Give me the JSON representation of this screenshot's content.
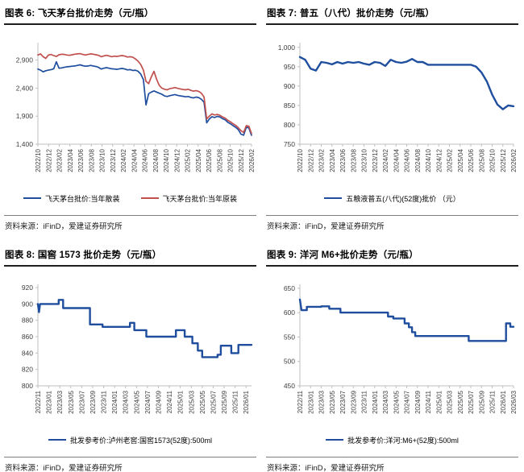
{
  "chart_data": [
    {
      "type": "line",
      "title": "图表 6: 飞天茅台批价走势（元/瓶）",
      "source": "资料来源：iFinD，爱建证券研究所",
      "legend_position": "bottom",
      "grid": false,
      "ylim": [
        1400,
        3210
      ],
      "yticks": [
        1400,
        1900,
        2400,
        2900
      ],
      "ytick_labels": [
        "1,400",
        "1,900",
        "2,400",
        "2,900"
      ],
      "xmax": 40,
      "xtick_step": 2,
      "xtick_labels": [
        "2022/10",
        "2022/12",
        "2023/02",
        "2023/04",
        "2023/06",
        "2023/08",
        "2023/10",
        "2023/12",
        "2024/02",
        "2024/04",
        "2024/06",
        "2024/08",
        "2024/10",
        "2024/12",
        "2025/02",
        "2025/04",
        "2025/06",
        "2025/08",
        "2025/10",
        "2025/12",
        "2026/02"
      ],
      "series": [
        {
          "name": "飞天茅台批价:当年散装",
          "color": "#1F4E9E",
          "width": 1.7,
          "values": [
            2740,
            2720,
            2690,
            2710,
            2720,
            2730,
            2745,
            2870,
            2755,
            2760,
            2770,
            2780,
            2785,
            2790,
            2795,
            2805,
            2815,
            2800,
            2790,
            2795,
            2805,
            2795,
            2785,
            2770,
            2740,
            2755,
            2765,
            2755,
            2745,
            2740,
            2735,
            2745,
            2750,
            2740,
            2725,
            2730,
            2715,
            2720,
            2700,
            2650,
            2550,
            2100,
            2300,
            2330,
            2350,
            2330,
            2310,
            2290,
            2260,
            2250,
            2265,
            2275,
            2285,
            2270,
            2260,
            2255,
            2245,
            2250,
            2235,
            2225,
            2240,
            2230,
            2200,
            2150,
            1780,
            1850,
            1890,
            1875,
            1895,
            1885,
            1855,
            1835,
            1790,
            1765,
            1730,
            1700,
            1660,
            1580,
            1560,
            1700,
            1690,
            1560
          ]
        },
        {
          "name": "飞天茅台批价:当年原装",
          "color": "#C0504D",
          "width": 1.7,
          "values": [
            2990,
            3010,
            2960,
            2930,
            2990,
            3000,
            2980,
            2965,
            2995,
            3005,
            3000,
            2990,
            2985,
            2995,
            3005,
            3010,
            3015,
            3000,
            2990,
            3000,
            3010,
            3005,
            2995,
            2985,
            2960,
            2975,
            2985,
            2975,
            2960,
            2970,
            2965,
            2975,
            2980,
            2970,
            2955,
            2960,
            2950,
            2920,
            2880,
            2820,
            2720,
            2520,
            2480,
            2600,
            2700,
            2560,
            2450,
            2400,
            2380,
            2370,
            2390,
            2400,
            2410,
            2395,
            2385,
            2375,
            2370,
            2380,
            2360,
            2345,
            2355,
            2340,
            2310,
            2240,
            1850,
            1900,
            1940,
            1920,
            1930,
            1915,
            1885,
            1865,
            1825,
            1800,
            1765,
            1735,
            1695,
            1640,
            1610,
            1730,
            1720,
            1590
          ]
        }
      ]
    },
    {
      "type": "line",
      "title": "图表 7: 普五（八代）批价走势（元/瓶）",
      "source": "资料来源：iFinD，爱建证券研究所",
      "legend_position": "bottom",
      "grid": false,
      "ylim": [
        750,
        1012
      ],
      "yticks": [
        750,
        800,
        850,
        900,
        950,
        1000
      ],
      "ytick_labels": [
        "750",
        "800",
        "850",
        "900",
        "950",
        "1,000"
      ],
      "xmax": 40,
      "xtick_step": 2,
      "xtick_labels": [
        "2022/10",
        "2022/12",
        "2023/02",
        "2023/04",
        "2023/06",
        "2023/08",
        "2023/10",
        "2023/12",
        "2024/02",
        "2024/04",
        "2024/06",
        "2024/08",
        "2024/10",
        "2024/12",
        "2025/02",
        "2025/04",
        "2025/06",
        "2025/08",
        "2025/10",
        "2025/12",
        "2026/02"
      ],
      "series": [
        {
          "name": "五粮液普五(八代)(52度)批价 （元）",
          "color": "#1F4E9E",
          "width": 2.4,
          "values": [
            975,
            968,
            945,
            940,
            962,
            960,
            956,
            962,
            958,
            962,
            960,
            962,
            958,
            955,
            962,
            960,
            952,
            968,
            962,
            960,
            963,
            970,
            962,
            962,
            955,
            955,
            955,
            955,
            955,
            955,
            955,
            955,
            955,
            950,
            935,
            912,
            878,
            852,
            840,
            850,
            848
          ]
        }
      ]
    },
    {
      "type": "line",
      "title": "图表 8: 国窖 1573 批价走势（元/瓶）",
      "source": "资料来源：iFinD，爱建证券研究所",
      "legend_position": "bottom",
      "grid": false,
      "ylim": [
        800,
        924
      ],
      "yticks": [
        800,
        820,
        840,
        860,
        880,
        900,
        920
      ],
      "ytick_labels": [
        "800",
        "820",
        "840",
        "860",
        "880",
        "900",
        "920"
      ],
      "xmax": 39,
      "xtick_step": 2,
      "xtick_labels": [
        "2022/11",
        "2023/01",
        "2023/03",
        "2023/05",
        "2023/07",
        "2023/09",
        "2023/11",
        "2024/01",
        "2024/03",
        "2024/05",
        "2024/07",
        "2024/09",
        "2024/11",
        "2025/01",
        "2025/03",
        "2025/05",
        "2025/07",
        "2025/09",
        "2025/11",
        "2026/01"
      ],
      "series": [
        {
          "name": "批发参考价:泸州老窖:国窖1573(52度):500ml",
          "color": "#1F4E9E",
          "width": 2.4,
          "points": [
            [
              0,
              900
            ],
            [
              0.2,
              890
            ],
            [
              0.4,
              900
            ],
            [
              3.8,
              900
            ],
            [
              3.8,
              905
            ],
            [
              4.6,
              905
            ],
            [
              4.6,
              895
            ],
            [
              9.5,
              895
            ],
            [
              9.5,
              875
            ],
            [
              11.8,
              875
            ],
            [
              11.8,
              872
            ],
            [
              16.8,
              872
            ],
            [
              16.8,
              877
            ],
            [
              17.6,
              877
            ],
            [
              17.6,
              868
            ],
            [
              19.8,
              868
            ],
            [
              19.8,
              860
            ],
            [
              25.2,
              860
            ],
            [
              25.2,
              868
            ],
            [
              26.8,
              868
            ],
            [
              26.8,
              860
            ],
            [
              28.2,
              860
            ],
            [
              28.2,
              852
            ],
            [
              29.2,
              852
            ],
            [
              29.2,
              843
            ],
            [
              30,
              843
            ],
            [
              30,
              835
            ],
            [
              32.8,
              835
            ],
            [
              32.8,
              838
            ],
            [
              33.4,
              838
            ],
            [
              33.4,
              849
            ],
            [
              35.3,
              849
            ],
            [
              35.3,
              840
            ],
            [
              36.6,
              840
            ],
            [
              36.6,
              850
            ],
            [
              39,
              850
            ]
          ]
        }
      ]
    },
    {
      "type": "line",
      "title": "图表 9: 洋河 M6+批价走势（元/瓶）",
      "source": "资料来源：iFinD，爱建证券研究所",
      "legend_position": "bottom",
      "grid": false,
      "ylim": [
        450,
        658
      ],
      "yticks": [
        450,
        500,
        550,
        600,
        650
      ],
      "ytick_labels": [
        "450",
        "500",
        "550",
        "600",
        "650"
      ],
      "xmax": 40,
      "xtick_step": 2,
      "xtick_labels": [
        "2022/11",
        "2023/01",
        "2023/03",
        "2023/05",
        "2023/07",
        "2023/09",
        "2023/11",
        "2024/01",
        "2024/03",
        "2024/05",
        "2024/07",
        "2024/09",
        "2024/11",
        "2025/01",
        "2025/03",
        "2025/05",
        "2025/07",
        "2025/09",
        "2025/11",
        "2026/01",
        "2026/03"
      ],
      "series": [
        {
          "name": "批发参考价:洋河:M6+(52度):500ml",
          "color": "#1F4E9E",
          "width": 2.4,
          "points": [
            [
              0,
              627
            ],
            [
              0.3,
              605
            ],
            [
              1.3,
              605
            ],
            [
              1.3,
              612
            ],
            [
              4,
              612
            ],
            [
              4,
              613
            ],
            [
              5.5,
              613
            ],
            [
              5.5,
              608
            ],
            [
              7.6,
              608
            ],
            [
              7.6,
              600
            ],
            [
              16.5,
              600
            ],
            [
              16.5,
              592
            ],
            [
              17.5,
              592
            ],
            [
              17.5,
              588
            ],
            [
              19.6,
              588
            ],
            [
              19.6,
              578
            ],
            [
              20.4,
              578
            ],
            [
              20.4,
              570
            ],
            [
              21,
              570
            ],
            [
              21,
              560
            ],
            [
              21.6,
              560
            ],
            [
              21.6,
              552
            ],
            [
              31.6,
              552
            ],
            [
              31.6,
              542
            ],
            [
              38.6,
              542
            ],
            [
              38.6,
              578
            ],
            [
              39.4,
              578
            ],
            [
              39.4,
              571
            ],
            [
              40,
              571
            ]
          ]
        }
      ]
    }
  ],
  "axis_style": {
    "axis_color": "#BFBFBF",
    "tick_label_color": "#404040"
  }
}
